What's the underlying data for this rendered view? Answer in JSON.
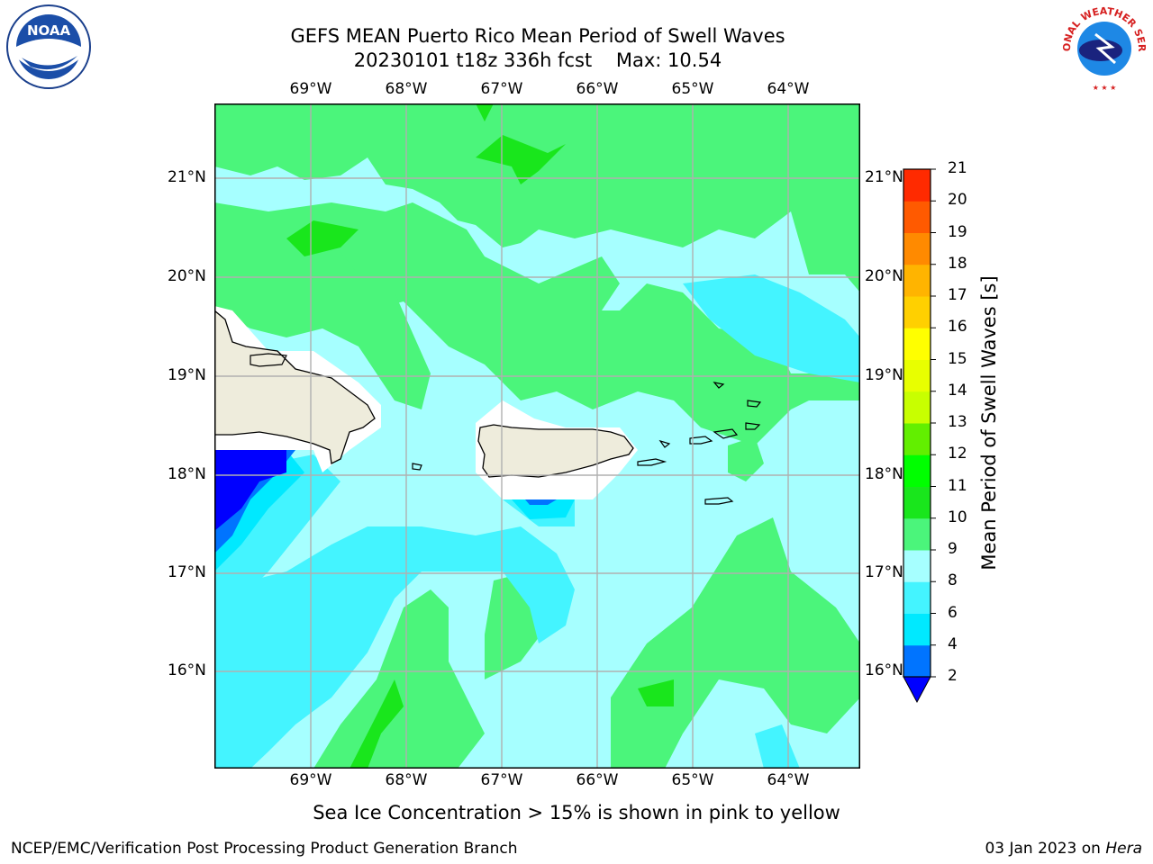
{
  "header": {
    "title_line1": "GEFS MEAN Puerto Rico Mean Period of Swell Waves",
    "title_line2": "20230101 t18z 336h fcst    Max: 10.54"
  },
  "map": {
    "longitude_labels": [
      "69°W",
      "68°W",
      "67°W",
      "66°W",
      "65°W",
      "64°W"
    ],
    "latitude_labels": [
      "21°N",
      "20°N",
      "19°N",
      "18°N",
      "17°N",
      "16°N"
    ]
  },
  "colorbar": {
    "label": "Mean Period of Swell Waves [s]",
    "ticks": [
      "2",
      "4",
      "6",
      "8",
      "9",
      "10",
      "11",
      "12",
      "13",
      "14",
      "15",
      "16",
      "17",
      "18",
      "19",
      "20",
      "21"
    ],
    "colors": [
      "#0000ff",
      "#0074ff",
      "#00e9ff",
      "#44f4ff",
      "#a6ffff",
      "#4bf57b",
      "#19e61c",
      "#00ff00",
      "#62ef00",
      "#c8ff00",
      "#e8ff00",
      "#ffff00",
      "#ffd000",
      "#ffb400",
      "#ff8a00",
      "#ff5a00",
      "#ff2a00",
      "#ff0000"
    ]
  },
  "footer": {
    "note": "Sea Ice Concentration > 15% is shown in pink to yellow",
    "credit": "NCEP/EMC/Verification Post Processing Product Generation Branch",
    "date_prefix": "03 Jan 2023 on ",
    "host": "Hera"
  },
  "logos": {
    "left_text": "NOAA",
    "right_text": "NATIONAL WEATHER SERVICE"
  }
}
